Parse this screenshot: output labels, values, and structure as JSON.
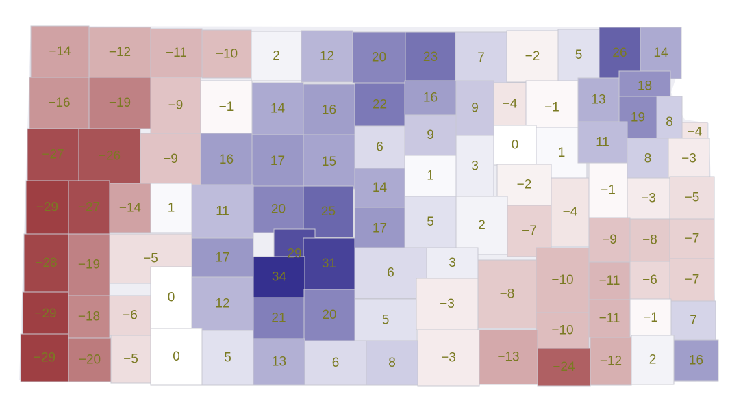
{
  "map": {
    "palette": {
      "negative": "#9e3f43",
      "neutral": "#ffffff",
      "positive": "#35308f",
      "label": "#7a7a22",
      "border": "#c8c8d2"
    },
    "counties": [
      {
        "v": -14
      },
      {
        "v": -12
      },
      {
        "v": -11
      },
      {
        "v": -10
      },
      {
        "v": 2
      },
      {
        "v": 12
      },
      {
        "v": 20
      },
      {
        "v": 23
      },
      {
        "v": 7
      },
      {
        "v": -2
      },
      {
        "v": 5
      },
      {
        "v": 26
      },
      {
        "v": 14
      },
      {
        "v": -16
      },
      {
        "v": -19
      },
      {
        "v": -9
      },
      {
        "v": -1
      },
      {
        "v": 14
      },
      {
        "v": 16
      },
      {
        "v": 22
      },
      {
        "v": 16
      },
      {
        "v": 9
      },
      {
        "v": -4
      },
      {
        "v": -1
      },
      {
        "v": 13
      },
      {
        "v": 18
      },
      {
        "v": 19
      },
      {
        "v": 8
      },
      {
        "v": -4
      },
      {
        "v": -27
      },
      {
        "v": -26
      },
      {
        "v": -9
      },
      {
        "v": 16
      },
      {
        "v": 17
      },
      {
        "v": 15
      },
      {
        "v": 6
      },
      {
        "v": 9
      },
      {
        "v": 0
      },
      {
        "v": 1
      },
      {
        "v": 11
      },
      {
        "v": 8
      },
      {
        "v": -3
      },
      {
        "v": 14
      },
      {
        "v": 1
      },
      {
        "v": 3
      },
      {
        "v": -2
      },
      {
        "v": -29
      },
      {
        "v": -27
      },
      {
        "v": -14
      },
      {
        "v": 1
      },
      {
        "v": 11
      },
      {
        "v": 20
      },
      {
        "v": 25
      },
      {
        "v": 17
      },
      {
        "v": 5
      },
      {
        "v": 2
      },
      {
        "v": -7
      },
      {
        "v": -4
      },
      {
        "v": -1
      },
      {
        "v": -3
      },
      {
        "v": -5
      },
      {
        "v": -28
      },
      {
        "v": -19
      },
      {
        "v": -5
      },
      {
        "v": 17
      },
      {
        "v": 29
      },
      {
        "v": 31
      },
      {
        "v": 34
      },
      {
        "v": 6
      },
      {
        "v": 3
      },
      {
        "v": -8
      },
      {
        "v": -10
      },
      {
        "v": -9
      },
      {
        "v": -8
      },
      {
        "v": -7
      },
      {
        "v": -11
      },
      {
        "v": -6
      },
      {
        "v": -7
      },
      {
        "v": -29
      },
      {
        "v": -18
      },
      {
        "v": -6
      },
      {
        "v": 0
      },
      {
        "v": 12
      },
      {
        "v": 21
      },
      {
        "v": 20
      },
      {
        "v": 5
      },
      {
        "v": -3
      },
      {
        "v": -10
      },
      {
        "v": -11
      },
      {
        "v": -1
      },
      {
        "v": 7
      },
      {
        "v": -29
      },
      {
        "v": -20
      },
      {
        "v": -5
      },
      {
        "v": 0
      },
      {
        "v": 5
      },
      {
        "v": 13
      },
      {
        "v": 6
      },
      {
        "v": 8
      },
      {
        "v": -3
      },
      {
        "v": -13
      },
      {
        "v": -24
      },
      {
        "v": -12
      },
      {
        "v": 2
      },
      {
        "v": 16
      }
    ]
  }
}
